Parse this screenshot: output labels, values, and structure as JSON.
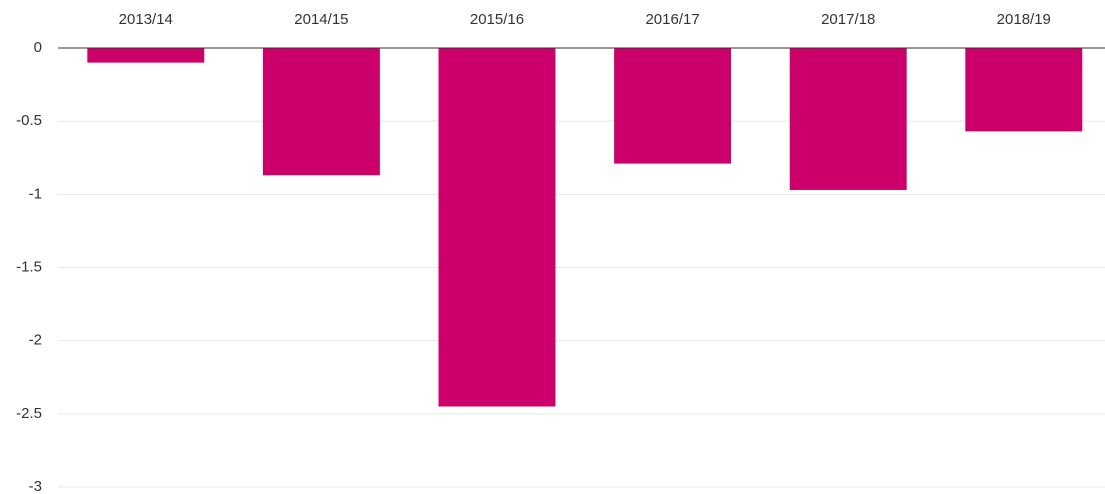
{
  "chart_data": {
    "type": "bar",
    "categories": [
      "2013/14",
      "2014/15",
      "2015/16",
      "2016/17",
      "2017/18",
      "2018/19"
    ],
    "values": [
      -0.1,
      -0.87,
      -2.45,
      -0.79,
      -0.97,
      -0.57
    ],
    "color": "#cc006a",
    "ylim": [
      -3,
      0
    ],
    "yticks": [
      0,
      -0.5,
      -1,
      -1.5,
      -2,
      -2.5,
      -3
    ],
    "grid": true
  }
}
